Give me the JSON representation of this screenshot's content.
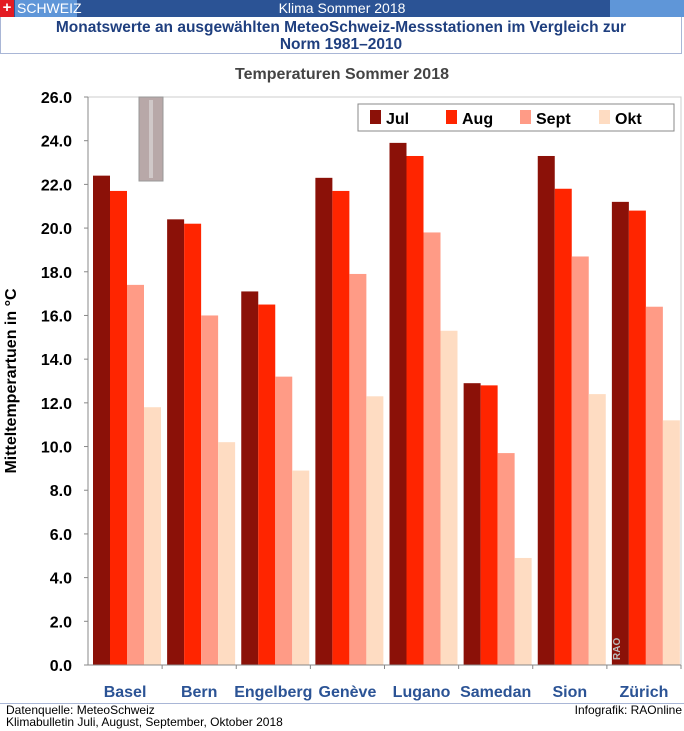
{
  "header": {
    "brand": "SCHWEIZ",
    "title": "Klima Sommer 2018",
    "subtitle_line1": "Monatswerte an ausgewählten MeteoSchweiz-Messstationen im Vergleich zur",
    "subtitle_line2": "Norm 1981–2010"
  },
  "chart_data": {
    "type": "bar",
    "title": "Temperaturen Sommer 2018",
    "xlabel": "",
    "ylabel": "Mitteltemperartuen in °C",
    "ylim": [
      0,
      26
    ],
    "yticks": [
      "0.0",
      "2.0",
      "4.0",
      "6.0",
      "8.0",
      "10.0",
      "12.0",
      "14.0",
      "16.0",
      "18.0",
      "20.0",
      "22.0",
      "24.0",
      "26.0"
    ],
    "categories": [
      "Basel",
      "Bern",
      "Engelberg",
      "Genève",
      "Lugano",
      "Samedan",
      "Sion",
      "Zürich"
    ],
    "legend_position": "top-right",
    "series": [
      {
        "name": "Jul",
        "color": "#8b1108",
        "values": [
          22.4,
          20.4,
          17.1,
          22.3,
          23.9,
          12.9,
          23.3,
          21.2
        ]
      },
      {
        "name": "Aug",
        "color": "#ff2500",
        "values": [
          21.7,
          20.2,
          16.5,
          21.7,
          23.3,
          12.8,
          21.8,
          20.8
        ]
      },
      {
        "name": "Sept",
        "color": "#ff9b86",
        "values": [
          17.4,
          16.0,
          13.2,
          17.9,
          19.8,
          9.7,
          18.7,
          16.4
        ]
      },
      {
        "name": "Okt",
        "color": "#fedcc2",
        "values": [
          11.8,
          10.2,
          8.9,
          12.3,
          15.3,
          4.9,
          12.4,
          11.2
        ]
      }
    ],
    "watermark": "RAO"
  },
  "footer": {
    "source": "Datenquelle: MeteoSchweiz",
    "bulletin": "Klimabulletin Juli, August, September, Oktober 2018",
    "credit": "Infografik: RAOnline"
  }
}
